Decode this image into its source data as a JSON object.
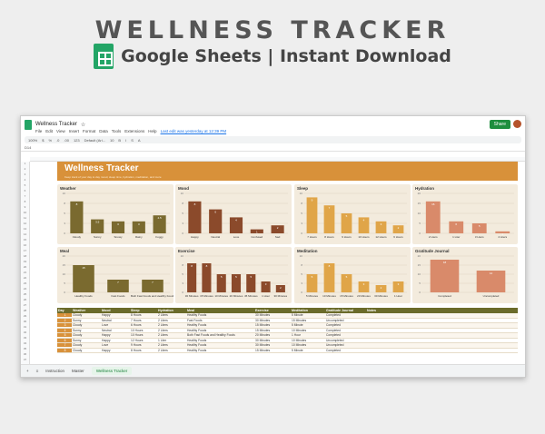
{
  "hero": {
    "title": "WELLNESS TRACKER",
    "subtitle": "Google Sheets | Instant Download"
  },
  "window": {
    "doc_title": "Wellness Tracker",
    "menu": [
      "File",
      "Edit",
      "View",
      "Insert",
      "Format",
      "Data",
      "Tools",
      "Extensions",
      "Help"
    ],
    "last_edit": "Last edit was yesterday at 12:39 PM",
    "share": "Share",
    "cell_ref": "D14",
    "toolbar": [
      "100%",
      "$",
      "%",
      ".0",
      ".00",
      "123",
      "Default (Ari...",
      "10",
      "B",
      "I",
      "S",
      "A"
    ]
  },
  "banner": {
    "title": "Wellness Tracker",
    "subtitle": "Keep track of your day to day mood, sleep time, hydration, meditation, and more"
  },
  "panels": [
    {
      "id": "weather",
      "title": "Weather",
      "ymax": 10,
      "labels": [
        "Cloudy",
        "Sunny",
        "Snowy",
        "Rainy",
        "Foggy"
      ],
      "values": [
        8,
        3.5,
        3,
        3,
        4.5
      ],
      "color": "#7a6a2f"
    },
    {
      "id": "mood",
      "title": "Mood",
      "ymax": 10,
      "labels": [
        "Happy",
        "Neutral",
        "Love",
        "Confused",
        "Sad"
      ],
      "values": [
        8,
        6,
        4,
        1,
        2
      ],
      "color": "#8b4a2b"
    },
    {
      "id": "sleep",
      "title": "Sleep",
      "ymax": 10,
      "labels": [
        "7 Hours",
        "8 Hours",
        "9 Hours",
        "10 Hours",
        "12 Hours",
        "6 Hours"
      ],
      "values": [
        9,
        7,
        5,
        4,
        3,
        2
      ],
      "color": "#e0a548"
    },
    {
      "id": "hydration",
      "title": "Hydration",
      "ymax": 20,
      "labels": [
        "2 Liters",
        "1 Liter",
        "3 Liters",
        "4 Liters"
      ],
      "values": [
        16,
        6,
        5,
        1
      ],
      "color": "#d98a6a"
    },
    {
      "id": "meal",
      "title": "Meal",
      "ymax": 20,
      "labels": [
        "Healthy Foods",
        "Fast Foods",
        "Both Fast Foods and Healthy Foods"
      ],
      "values": [
        15,
        7,
        7
      ],
      "color": "#7a6a2f"
    },
    {
      "id": "exercise",
      "title": "Exercise",
      "ymax": 10,
      "labels": [
        "30 Minutes",
        "15 Minutes",
        "10 Minutes",
        "20 Minutes",
        "45 Minutes",
        "1 Hour",
        "30 Minutes"
      ],
      "values": [
        8,
        8,
        5,
        5,
        5,
        3,
        2
      ],
      "color": "#8b4a2b"
    },
    {
      "id": "meditation",
      "title": "Meditation",
      "ymax": 10,
      "labels": [
        "5 Minutes",
        "10 Minutes",
        "15 Minutes",
        "20 Minutes",
        "30 Minutes",
        "1 Hour"
      ],
      "values": [
        5,
        8,
        5,
        3,
        2,
        3
      ],
      "color": "#e0a548"
    },
    {
      "id": "gratitude",
      "title": "Gratitude Journal",
      "ymax": 20,
      "labels": [
        "Completed",
        "Uncompleted"
      ],
      "values": [
        18,
        12
      ],
      "color": "#d98a6a"
    }
  ],
  "table": {
    "headers": [
      "Day",
      "Weather",
      "Mood",
      "Sleep",
      "Hydration",
      "Meal",
      "Exercise",
      "Meditation",
      "Gratitude Journal",
      "Notes"
    ],
    "rows": [
      [
        "1",
        "Cloudy",
        "Happy",
        "8 Hours",
        "2 Liters",
        "Healthy Foods",
        "30 Minutes",
        "5 Minute",
        "Completed",
        ""
      ],
      [
        "2",
        "Sunny",
        "Neutral",
        "7 Hours",
        "2 Liters",
        "Fast Foods",
        "30 Minutes",
        "15 Minutes",
        "Uncompleted",
        ""
      ],
      [
        "3",
        "Cloudy",
        "Love",
        "6 Hours",
        "2 Liters",
        "Healthy Foods",
        "15 Minutes",
        "5 Minute",
        "Completed",
        ""
      ],
      [
        "4",
        "Sunny",
        "Neutral",
        "10 Hours",
        "2 Liters",
        "Healthy Foods",
        "15 Minutes",
        "10 Minutes",
        "Completed",
        ""
      ],
      [
        "5",
        "Cloudy",
        "Happy",
        "10 Hours",
        "2 Liters",
        "Both Fast Foods and Healthy Foods",
        "20 Minutes",
        "1 Hour",
        "Completed",
        ""
      ],
      [
        "6",
        "Sunny",
        "Happy",
        "12 Hours",
        "1 Liter",
        "Healthy Foods",
        "30 Minutes",
        "10 Minutes",
        "Uncompleted",
        ""
      ],
      [
        "7",
        "Cloudy",
        "Love",
        "9 Hours",
        "2 Liters",
        "Healthy Foods",
        "30 Minutes",
        "10 Minutes",
        "Uncompleted",
        ""
      ],
      [
        "8",
        "Cloudy",
        "Happy",
        "8 Hours",
        "2 Liters",
        "Healthy Foods",
        "15 Minutes",
        "5 Minute",
        "Completed",
        ""
      ]
    ]
  },
  "sheet_tabs": [
    "Instruction",
    "Master",
    "Wellness Tracker"
  ]
}
